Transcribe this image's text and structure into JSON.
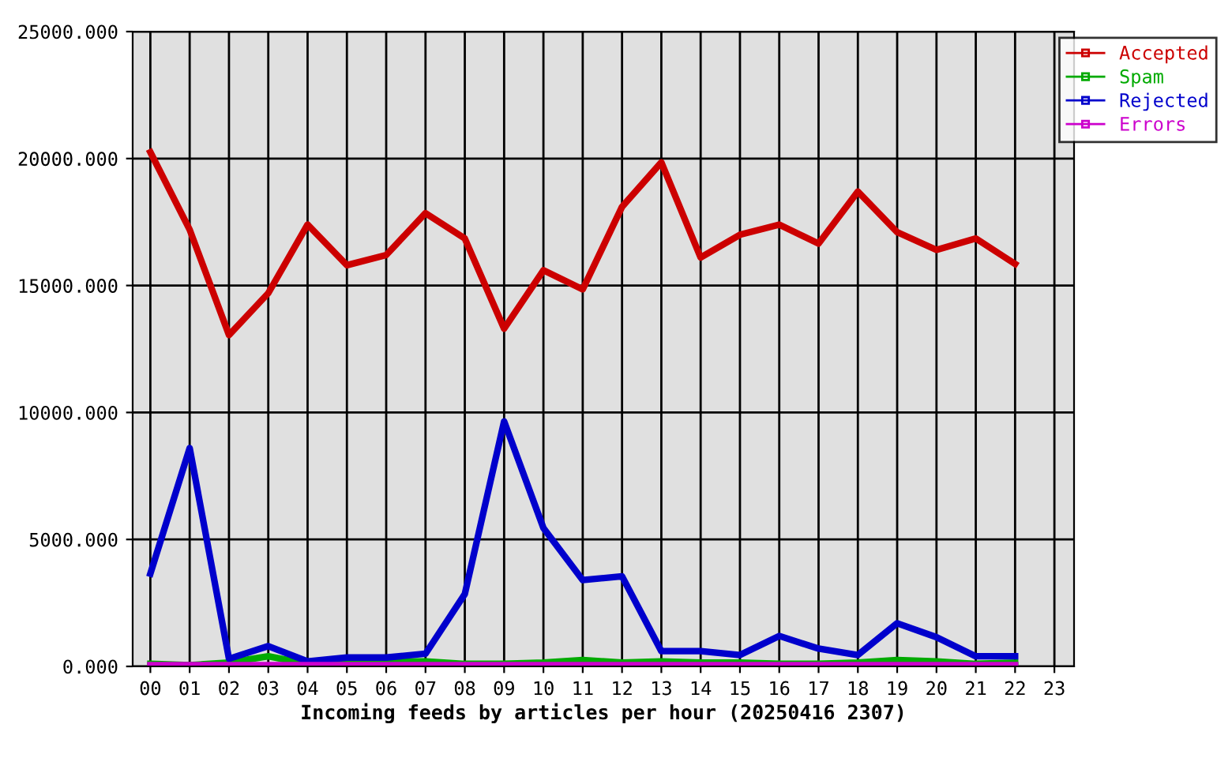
{
  "chart_data": {
    "type": "line",
    "xlabel": "Incoming feeds by articles per hour (20250416 2307)",
    "categories": [
      "00",
      "01",
      "02",
      "03",
      "04",
      "05",
      "06",
      "07",
      "08",
      "09",
      "10",
      "11",
      "12",
      "13",
      "14",
      "15",
      "16",
      "17",
      "18",
      "19",
      "20",
      "21",
      "22",
      "23"
    ],
    "series": [
      {
        "name": "Accepted",
        "color": "#cc0000",
        "values": [
          20250,
          17200,
          13050,
          14700,
          17400,
          15800,
          16200,
          17850,
          16850,
          13300,
          15600,
          14850,
          18100,
          19850,
          16100,
          17000,
          17400,
          16650,
          18700,
          17100,
          16400,
          16850,
          15850,
          null
        ]
      },
      {
        "name": "Spam",
        "color": "#00aa00",
        "values": [
          100,
          50,
          150,
          400,
          100,
          150,
          200,
          200,
          100,
          100,
          150,
          250,
          150,
          200,
          150,
          150,
          100,
          100,
          150,
          250,
          200,
          100,
          150,
          null
        ]
      },
      {
        "name": "Rejected",
        "color": "#0000cc",
        "values": [
          3650,
          8600,
          300,
          800,
          200,
          350,
          350,
          500,
          2850,
          9650,
          5450,
          3400,
          3550,
          600,
          600,
          450,
          1200,
          700,
          450,
          1700,
          1150,
          400,
          400,
          null
        ]
      },
      {
        "name": "Errors",
        "color": "#cc00cc",
        "values": [
          50,
          50,
          50,
          50,
          50,
          50,
          50,
          50,
          50,
          50,
          50,
          50,
          50,
          50,
          50,
          50,
          50,
          50,
          50,
          50,
          50,
          50,
          50,
          null
        ]
      }
    ],
    "ylim": [
      0,
      25000
    ],
    "yticks": [
      {
        "value": 0,
        "label": "0.000"
      },
      {
        "value": 5000,
        "label": "5000.000"
      },
      {
        "value": 10000,
        "label": "10000.000"
      },
      {
        "value": 15000,
        "label": "15000.000"
      },
      {
        "value": 20000,
        "label": "20000.000"
      },
      {
        "value": 25000,
        "label": "25000.000"
      }
    ],
    "grid": true,
    "legend": "top right"
  }
}
